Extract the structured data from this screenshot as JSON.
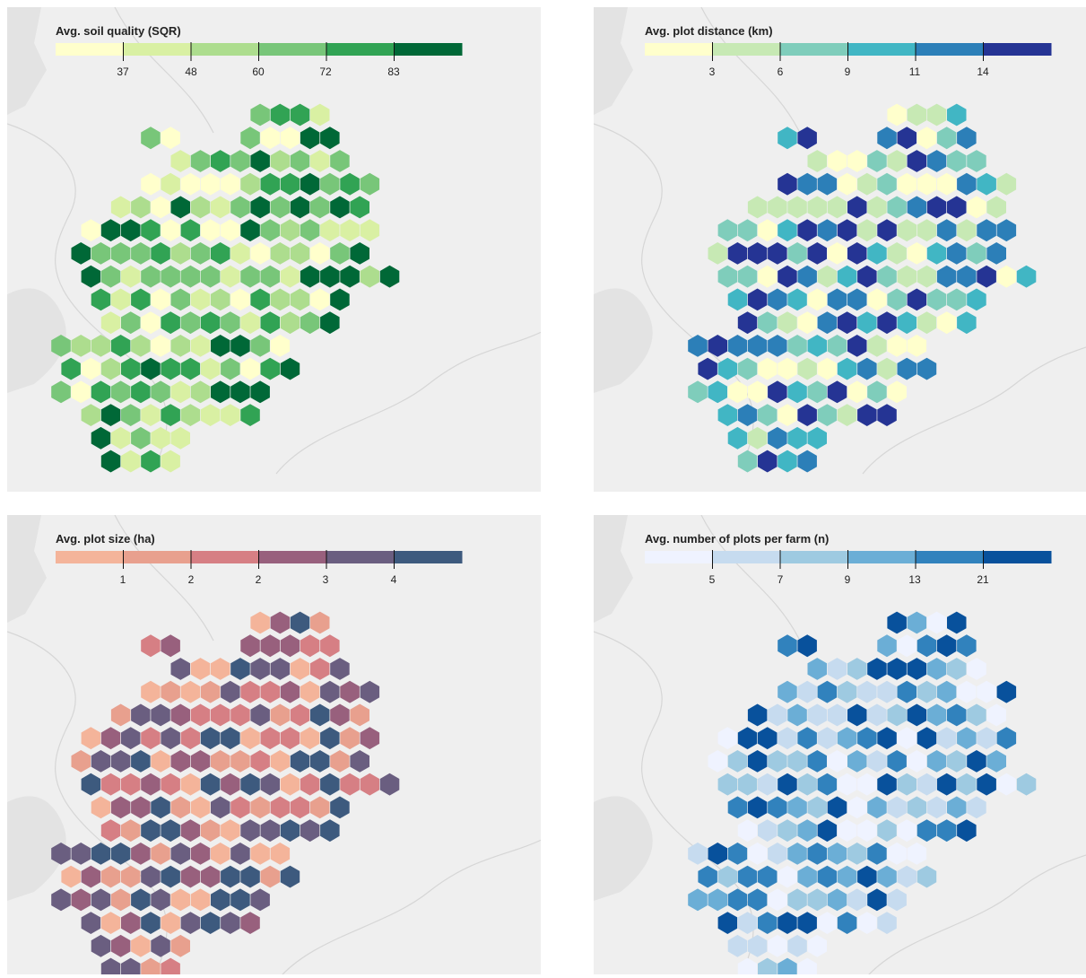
{
  "panels": [
    {
      "id": "soil",
      "title": "Avg. soil quality (SQR)",
      "tick_labels": [
        "37",
        "48",
        "60",
        "72",
        "83"
      ],
      "colors": [
        "#ffffcc",
        "#d9f0a3",
        "#addd8e",
        "#78c679",
        "#31a354",
        "#006837"
      ]
    },
    {
      "id": "distance",
      "title": "Avg. plot distance (km)",
      "tick_labels": [
        "3",
        "6",
        "9",
        "11",
        "14"
      ],
      "colors": [
        "#ffffcc",
        "#c7e9b4",
        "#7fcdbb",
        "#41b6c4",
        "#2c7fb8",
        "#253494"
      ]
    },
    {
      "id": "size",
      "title": "Avg. plot size (ha)",
      "tick_labels": [
        "1",
        "2",
        "2",
        "3",
        "4"
      ],
      "colors": [
        "#f4b49a",
        "#e8a08e",
        "#d67f84",
        "#98607d",
        "#6a5e80",
        "#3d5a7e"
      ]
    },
    {
      "id": "plots",
      "title": "Avg. number of plots per farm (n)",
      "tick_labels": [
        "5",
        "7",
        "9",
        "13",
        "21"
      ],
      "colors": [
        "#eff3ff",
        "#c6dbef",
        "#9ecae1",
        "#6baed6",
        "#3182bd",
        "#08519c"
      ]
    }
  ],
  "basemap_colors": {
    "background": "#efefef",
    "land_shade": "#e3e3e3",
    "river": "#d6d6d6"
  }
}
